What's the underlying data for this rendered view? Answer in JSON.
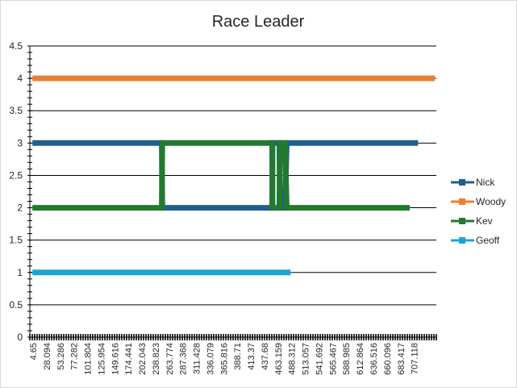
{
  "chart_data": {
    "type": "line",
    "title": "Race Leader",
    "xlabel": "",
    "ylabel": "",
    "ylim": [
      0,
      4.5
    ],
    "yticks": [
      "0",
      "0.5",
      "1",
      "1.5",
      "2",
      "2.5",
      "3",
      "3.5",
      "4",
      "4.5"
    ],
    "xticks": [
      "4.65",
      "28.094",
      "53.286",
      "77.282",
      "101.804",
      "125.954",
      "149.616",
      "174.441",
      "202.043",
      "238.823",
      "263.774",
      "287.368",
      "311.428",
      "336.079",
      "365.816",
      "388.71",
      "413.37",
      "437.68",
      "463.159",
      "488.312",
      "513.057",
      "541.692",
      "565.467",
      "588.985",
      "612.864",
      "636.516",
      "660.096",
      "683.417",
      "707.118"
    ],
    "grid": true,
    "legend": "right",
    "series": [
      {
        "name": "Nick",
        "color": "#1f5f8b",
        "points": [
          [
            4.65,
            3
          ],
          [
            238.0,
            3
          ],
          [
            238.823,
            2
          ],
          [
            437.0,
            2
          ],
          [
            437.68,
            3
          ],
          [
            450.0,
            3
          ],
          [
            451.0,
            2
          ],
          [
            460.0,
            2
          ],
          [
            463.159,
            3
          ],
          [
            700.0,
            3
          ]
        ]
      },
      {
        "name": "Woody",
        "color": "#ed7d31",
        "points": [
          [
            4.65,
            4
          ],
          [
            730.0,
            4
          ]
        ]
      },
      {
        "name": "Kev",
        "color": "#217a2f",
        "points": [
          [
            4.65,
            2
          ],
          [
            238.0,
            2
          ],
          [
            238.823,
            3
          ],
          [
            437.0,
            3
          ],
          [
            437.68,
            2
          ],
          [
            450.0,
            2
          ],
          [
            451.0,
            3
          ],
          [
            460.0,
            3
          ],
          [
            463.159,
            2
          ],
          [
            685.0,
            2
          ]
        ]
      },
      {
        "name": "Geoff",
        "color": "#1ea3d9",
        "points": [
          [
            4.65,
            1
          ],
          [
            470.0,
            1
          ]
        ]
      }
    ]
  }
}
